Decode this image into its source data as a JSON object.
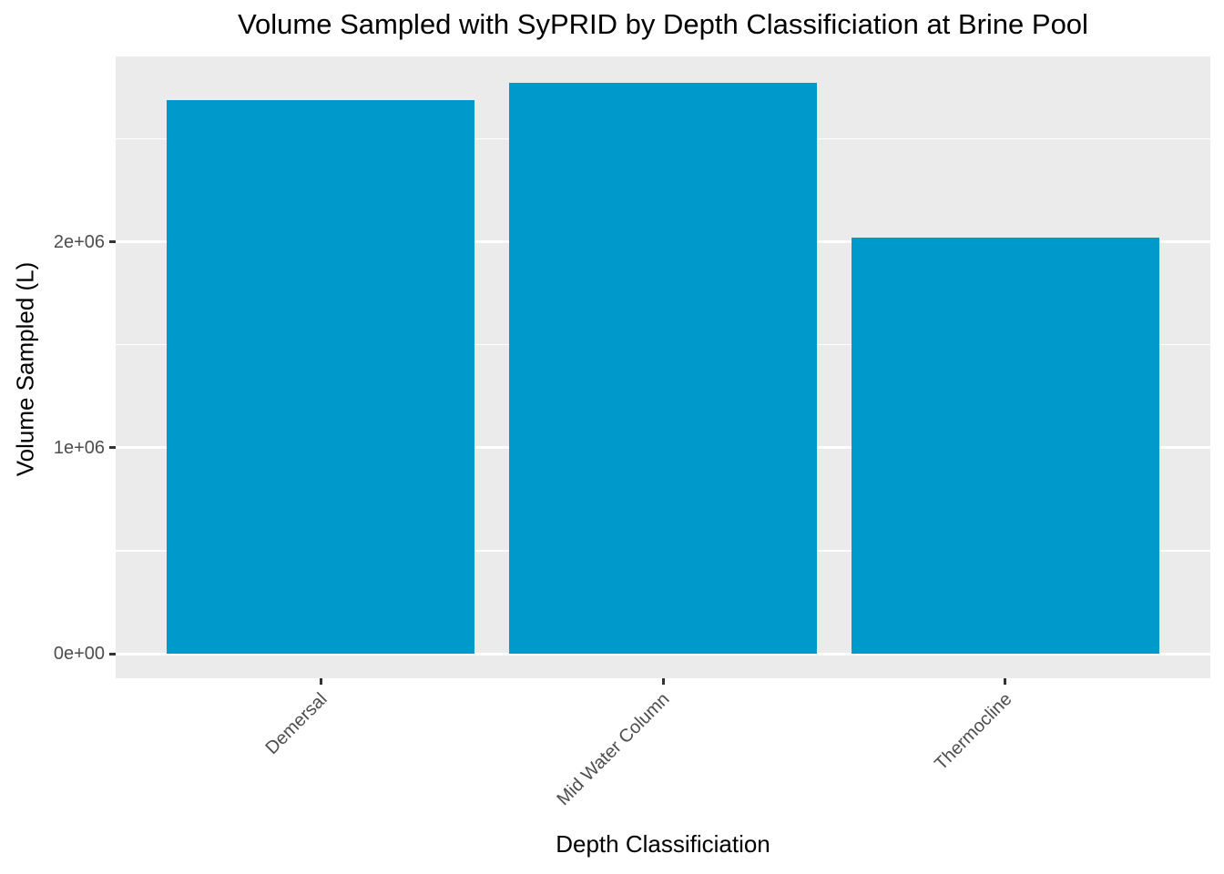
{
  "chart_data": {
    "type": "bar",
    "title": "Volume Sampled with SyPRID by Depth Classificiation at Brine Pool",
    "xlabel": "Depth Classificiation",
    "ylabel": "Volume Sampled (L)",
    "categories": [
      "Demersal",
      "Mid Water Column",
      "Thermocline"
    ],
    "values": [
      2690000,
      2770000,
      2020000
    ],
    "ylim": [
      0,
      2900000
    ],
    "yticks": [
      {
        "value": 0,
        "label": "0e+00"
      },
      {
        "value": 1000000,
        "label": "1e+06"
      },
      {
        "value": 2000000,
        "label": "2e+06"
      }
    ],
    "minor_ticks": [
      500000,
      1500000,
      2500000
    ],
    "grid": "on",
    "legend_position": "none",
    "bar_color": "#0099CC",
    "panel_background": "#EBEBEB",
    "gridline_color": "#FFFFFF",
    "tick_label_color": "#4D4D4D",
    "tick_mark_color": "#333333",
    "text_color": "#000000",
    "x_label_angle_deg": 45
  }
}
